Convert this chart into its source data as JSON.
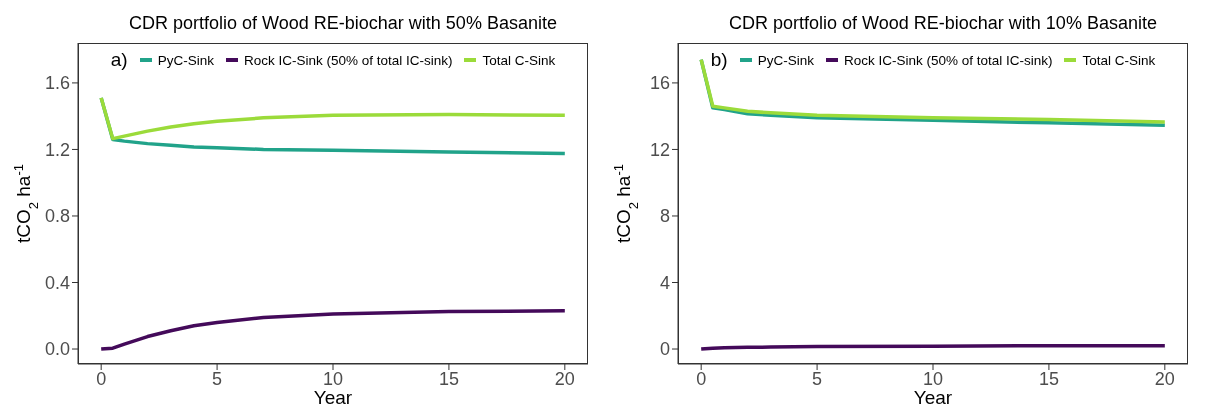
{
  "chart_data": [
    {
      "type": "line",
      "title": "CDR portfolio of Wood RE-biochar with 50% Basanite",
      "xlabel": "Year",
      "ylabel": "tCO$_{2}$ ha$^{-1}$",
      "annotations": [
        "a)"
      ],
      "legend": "top",
      "grid": false,
      "line_style": "solid",
      "marker": "none",
      "x": [
        0,
        0.5,
        1,
        2,
        3,
        4,
        5,
        7,
        10,
        15,
        20
      ],
      "xlim": [
        -1,
        21
      ],
      "xticks": [
        0,
        5,
        10,
        15,
        20
      ],
      "ylim": [
        -0.09,
        1.84
      ],
      "yticks": [
        {
          "value": 0,
          "label": "0.0"
        },
        0.4,
        0.8,
        1.2,
        1.6
      ],
      "series": [
        {
          "name": "PyC-Sink",
          "color": "#21a38a",
          "values": [
            1.51,
            1.26,
            1.25,
            1.235,
            1.225,
            1.215,
            1.21,
            1.2,
            1.195,
            1.185,
            1.175
          ]
        },
        {
          "name": "Rock IC-Sink (50% of total IC-sink)",
          "color": "#440a5a",
          "values": [
            0,
            0.005,
            0.03,
            0.075,
            0.11,
            0.14,
            0.16,
            0.19,
            0.21,
            0.225,
            0.23
          ]
        },
        {
          "name": "Total C-Sink",
          "color": "#9bdb3a",
          "values": [
            1.51,
            1.265,
            1.28,
            1.31,
            1.335,
            1.355,
            1.37,
            1.39,
            1.405,
            1.41,
            1.405
          ]
        }
      ]
    },
    {
      "type": "line",
      "title": "CDR portfolio of Wood RE-biochar with 10% Basanite",
      "xlabel": "Year",
      "ylabel": "tCO$_{2}$ ha$^{-1}$",
      "annotations": [
        "b)"
      ],
      "legend": "top",
      "grid": false,
      "line_style": "solid",
      "marker": "none",
      "x": [
        0,
        0.5,
        1,
        2,
        3,
        5,
        10,
        15,
        20
      ],
      "xlim": [
        -1,
        21
      ],
      "xticks": [
        0,
        5,
        10,
        15,
        20
      ],
      "ylim": [
        -0.9,
        18.4
      ],
      "yticks": [
        0,
        4,
        8,
        12,
        16
      ],
      "series": [
        {
          "name": "PyC-Sink",
          "color": "#21a38a",
          "values": [
            17.4,
            14.5,
            14.4,
            14.15,
            14.05,
            13.9,
            13.75,
            13.6,
            13.45
          ]
        },
        {
          "name": "Rock IC-Sink (50% of total IC-sink)",
          "color": "#440a5a",
          "values": [
            0,
            0.05,
            0.08,
            0.1,
            0.12,
            0.15,
            0.17,
            0.2,
            0.2
          ]
        },
        {
          "name": "Total C-Sink",
          "color": "#9bdb3a",
          "values": [
            17.4,
            14.6,
            14.5,
            14.3,
            14.2,
            14.05,
            13.9,
            13.8,
            13.65
          ]
        }
      ]
    }
  ]
}
